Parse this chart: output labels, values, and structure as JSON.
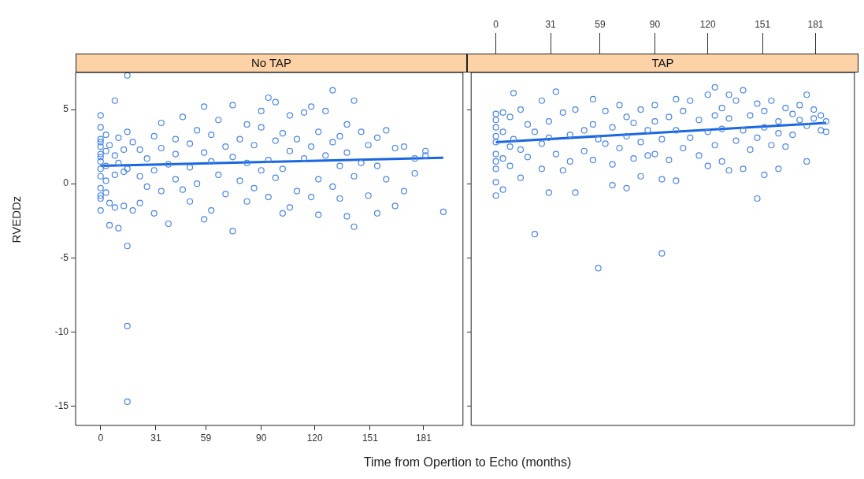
{
  "chart_data": [
    {
      "type": "scatter",
      "title": "No TAP",
      "xlabel": "Time from Opertion to Echo (months)",
      "ylabel": "RVEDDz",
      "marker": "circle",
      "xlim": [
        -14,
        203
      ],
      "xticks": [
        0,
        31,
        59,
        90,
        120,
        151,
        181
      ],
      "ylim": [
        -16.3,
        7.5
      ],
      "yticks": [
        -15,
        -10,
        -5,
        0,
        5
      ],
      "series": [
        {
          "color": "#4a86e8",
          "x": [
            0,
            0,
            0,
            0,
            0,
            0,
            0,
            0,
            0,
            0,
            0,
            0,
            0,
            0,
            3,
            3,
            3,
            3,
            3,
            5,
            5,
            5,
            8,
            8,
            8,
            8,
            10,
            10,
            10,
            13,
            13,
            13,
            15,
            15,
            15,
            15,
            15,
            15,
            18,
            18,
            22,
            22,
            22,
            26,
            26,
            30,
            30,
            30,
            34,
            34,
            34,
            38,
            38,
            42,
            42,
            42,
            46,
            46,
            50,
            50,
            50,
            54,
            54,
            58,
            58,
            58,
            62,
            62,
            62,
            66,
            66,
            70,
            70,
            74,
            74,
            74,
            78,
            78,
            82,
            82,
            82,
            86,
            86,
            90,
            90,
            90,
            94,
            94,
            94,
            98,
            98,
            98,
            102,
            102,
            102,
            106,
            106,
            106,
            110,
            110,
            114,
            114,
            118,
            118,
            118,
            122,
            122,
            122,
            126,
            126,
            130,
            130,
            130,
            134,
            134,
            134,
            138,
            138,
            138,
            142,
            142,
            142,
            146,
            146,
            150,
            150,
            155,
            155,
            155,
            160,
            160,
            165,
            165,
            170,
            170,
            176,
            176,
            182,
            182,
            192
          ],
          "values": [
            4.6,
            3.8,
            3.0,
            2.5,
            2.0,
            1.5,
            1.0,
            0.5,
            -0.3,
            -0.8,
            -1.0,
            2.8,
            1.8,
            -1.8,
            3.3,
            2.2,
            0.2,
            -0.6,
            1.2,
            -2.8,
            2.6,
            -1.3,
            5.6,
            1.9,
            0.6,
            -1.6,
            -3.0,
            3.1,
            1.4,
            2.3,
            -1.5,
            0.8,
            7.3,
            -4.2,
            -9.6,
            -14.7,
            3.5,
            1.0,
            -1.8,
            2.8,
            -1.3,
            2.3,
            0.5,
            1.7,
            -0.2,
            3.2,
            0.9,
            -2.0,
            4.1,
            2.4,
            -0.5,
            1.3,
            -2.7,
            3.0,
            0.3,
            2.0,
            4.5,
            -0.4,
            2.7,
            1.1,
            -1.2,
            3.6,
            0.0,
            5.2,
            2.1,
            -2.4,
            1.5,
            -1.8,
            3.3,
            4.3,
            0.6,
            2.5,
            -0.7,
            5.3,
            1.8,
            -3.2,
            3.0,
            0.2,
            4.0,
            1.4,
            -1.2,
            2.6,
            -0.3,
            3.8,
            0.9,
            4.9,
            5.8,
            1.6,
            -0.9,
            2.9,
            0.4,
            5.5,
            3.4,
            -2.0,
            1.0,
            4.6,
            2.2,
            -1.6,
            3.0,
            -0.5,
            1.7,
            4.8,
            5.2,
            2.5,
            -0.9,
            3.5,
            0.3,
            -2.1,
            4.9,
            1.9,
            6.3,
            2.8,
            -0.2,
            3.2,
            1.2,
            -1.0,
            4.0,
            -2.2,
            2.1,
            5.6,
            0.5,
            -2.9,
            3.5,
            1.4,
            2.6,
            -0.8,
            3.1,
            -2.0,
            1.2,
            3.6,
            0.3,
            2.4,
            -1.5,
            2.5,
            -0.5,
            1.7,
            0.7,
            2.2,
            1.9,
            -1.9
          ]
        },
        {
          "type": "line",
          "marker": "none",
          "color": "#1a66e0",
          "x": [
            0,
            192
          ],
          "values": [
            1.2,
            1.75
          ]
        }
      ]
    },
    {
      "type": "scatter",
      "title": "TAP",
      "marker": "circle",
      "tick_labels": "x",
      "xlim": [
        -14,
        203
      ],
      "xticks": [
        0,
        31,
        59,
        90,
        120,
        151,
        181
      ],
      "ylim": [
        -16.3,
        7.5
      ],
      "yticks": [
        -15,
        -10,
        -5,
        0,
        5
      ],
      "series": [
        {
          "color": "#4a86e8",
          "x": [
            0,
            0,
            0,
            0,
            0,
            0,
            0,
            0,
            0,
            0,
            4,
            4,
            4,
            4,
            8,
            8,
            8,
            10,
            10,
            14,
            14,
            14,
            18,
            18,
            22,
            22,
            26,
            26,
            26,
            30,
            30,
            30,
            34,
            34,
            38,
            38,
            42,
            42,
            45,
            45,
            50,
            50,
            55,
            55,
            55,
            58,
            58,
            62,
            62,
            66,
            66,
            66,
            70,
            70,
            74,
            74,
            74,
            78,
            78,
            82,
            82,
            82,
            86,
            86,
            90,
            90,
            90,
            94,
            94,
            94,
            98,
            98,
            102,
            102,
            102,
            106,
            106,
            110,
            110,
            115,
            115,
            120,
            120,
            120,
            124,
            124,
            124,
            128,
            128,
            128,
            132,
            132,
            132,
            136,
            136,
            140,
            140,
            140,
            144,
            144,
            148,
            148,
            148,
            152,
            152,
            152,
            156,
            156,
            160,
            160,
            160,
            164,
            164,
            168,
            168,
            172,
            172,
            176,
            176,
            176,
            180,
            180,
            184,
            184,
            187,
            187
          ],
          "values": [
            4.7,
            4.3,
            3.8,
            3.2,
            2.8,
            2.0,
            1.5,
            1.0,
            -0.8,
            0.1,
            4.8,
            3.5,
            1.7,
            -0.4,
            4.5,
            2.5,
            1.2,
            6.1,
            3.0,
            0.4,
            5.0,
            2.3,
            4.0,
            1.8,
            -3.4,
            3.5,
            5.6,
            2.7,
            1.0,
            -0.6,
            4.2,
            3.1,
            6.2,
            2.0,
            4.8,
            0.9,
            3.3,
            1.5,
            -0.6,
            5.0,
            3.6,
            2.2,
            5.7,
            1.6,
            4.0,
            -5.7,
            3.0,
            4.9,
            2.7,
            3.8,
            -0.1,
            1.3,
            5.3,
            2.4,
            4.5,
            -0.3,
            3.2,
            1.7,
            4.1,
            5.0,
            2.8,
            0.5,
            3.6,
            1.9,
            5.3,
            4.2,
            2.0,
            -4.7,
            0.3,
            3.0,
            4.5,
            1.6,
            5.7,
            3.6,
            0.2,
            4.9,
            2.4,
            5.6,
            3.1,
            4.3,
            1.9,
            6.0,
            3.5,
            1.2,
            6.5,
            4.6,
            2.6,
            5.1,
            1.5,
            3.7,
            6.0,
            4.4,
            0.9,
            5.6,
            2.9,
            6.3,
            3.6,
            1.0,
            4.6,
            2.3,
            5.4,
            -1.0,
            3.1,
            4.9,
            0.6,
            3.8,
            5.6,
            2.6,
            4.2,
            1.0,
            3.4,
            5.1,
            2.5,
            4.7,
            3.3,
            5.3,
            4.3,
            6.0,
            1.5,
            3.9,
            5.0,
            4.4,
            4.6,
            3.6,
            3.5,
            4.2
          ]
        },
        {
          "type": "line",
          "marker": "none",
          "color": "#1a66e0",
          "x": [
            0,
            187
          ],
          "values": [
            2.8,
            4.1
          ]
        }
      ]
    }
  ]
}
